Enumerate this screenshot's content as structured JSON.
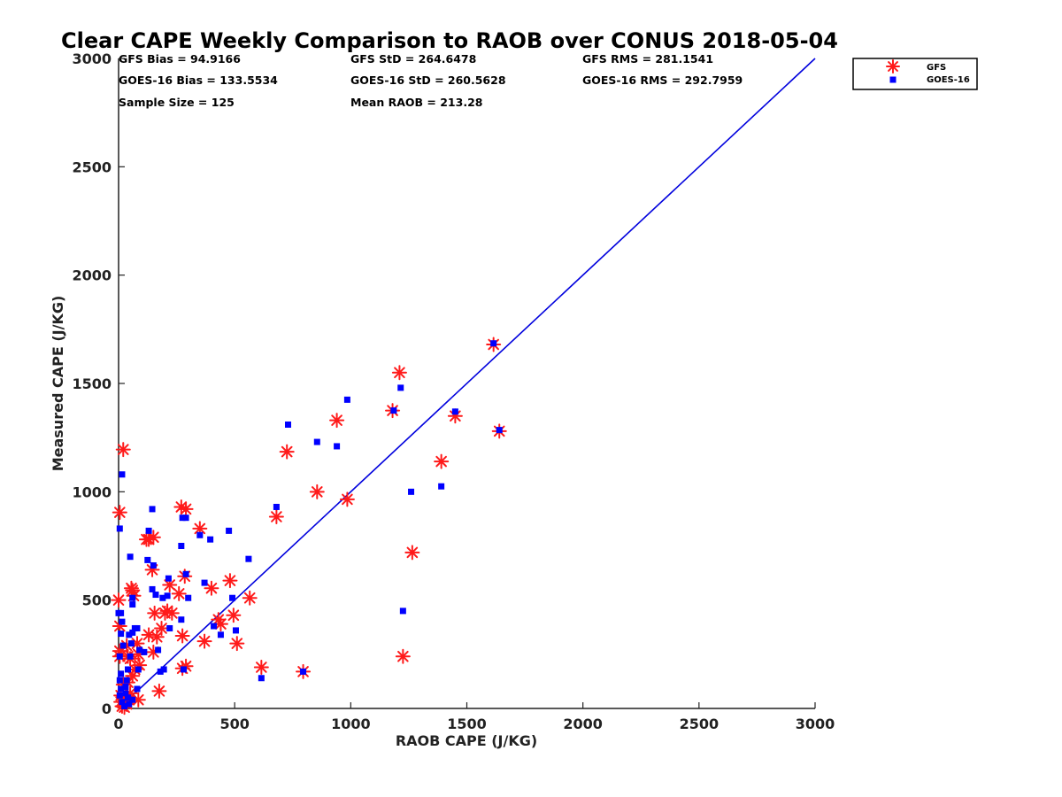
{
  "chart_data": {
    "type": "scatter",
    "title": "Clear CAPE Weekly Comparison to RAOB over CONUS 2018-05-04",
    "xlabel": "RAOB CAPE (J/KG)",
    "ylabel": "Measured CAPE (J/KG)",
    "xlim": [
      0,
      3000
    ],
    "ylim": [
      0,
      3000
    ],
    "xticks": [
      "0",
      "500",
      "1000",
      "1500",
      "2000",
      "2500",
      "3000"
    ],
    "yticks": [
      "0",
      "500",
      "1000",
      "1500",
      "2000",
      "2500",
      "3000"
    ],
    "grid": false,
    "legend_position": "top-right",
    "stats": {
      "row1": [
        "GFS Bias = 94.9166",
        "GFS StD = 264.6478",
        "GFS RMS = 281.1541"
      ],
      "row2": [
        "GOES-16 Bias = 133.5534",
        "GOES-16 StD = 260.5628",
        "GOES-16 RMS = 292.7959"
      ],
      "row3": [
        "Sample Size = 125",
        "Mean RAOB = 213.28"
      ]
    },
    "reference_line": {
      "x": [
        0,
        3000
      ],
      "y": [
        0,
        3000
      ],
      "color": "#0000dd"
    },
    "series": [
      {
        "name": "GFS",
        "marker": "asterisk",
        "color": "#ff1a1a",
        "points": [
          [
            20,
            1195
          ],
          [
            5,
            905
          ],
          [
            0,
            500
          ],
          [
            5,
            380
          ],
          [
            5,
            265
          ],
          [
            5,
            240
          ],
          [
            10,
            60
          ],
          [
            10,
            30
          ],
          [
            15,
            10
          ],
          [
            25,
            5
          ],
          [
            30,
            50
          ],
          [
            20,
            110
          ],
          [
            35,
            290
          ],
          [
            40,
            240
          ],
          [
            50,
            230
          ],
          [
            55,
            555
          ],
          [
            60,
            545
          ],
          [
            65,
            520
          ],
          [
            80,
            300
          ],
          [
            85,
            250
          ],
          [
            90,
            200
          ],
          [
            70,
            180
          ],
          [
            60,
            150
          ],
          [
            40,
            120
          ],
          [
            50,
            70
          ],
          [
            45,
            40
          ],
          [
            85,
            40
          ],
          [
            35,
            20
          ],
          [
            120,
            780
          ],
          [
            130,
            780
          ],
          [
            150,
            790
          ],
          [
            145,
            640
          ],
          [
            155,
            440
          ],
          [
            165,
            330
          ],
          [
            150,
            260
          ],
          [
            130,
            340
          ],
          [
            175,
            80
          ],
          [
            185,
            370
          ],
          [
            200,
            440
          ],
          [
            210,
            450
          ],
          [
            220,
            570
          ],
          [
            230,
            440
          ],
          [
            260,
            530
          ],
          [
            270,
            930
          ],
          [
            290,
            920
          ],
          [
            275,
            335
          ],
          [
            275,
            185
          ],
          [
            290,
            195
          ],
          [
            285,
            610
          ],
          [
            350,
            830
          ],
          [
            370,
            310
          ],
          [
            400,
            555
          ],
          [
            430,
            410
          ],
          [
            440,
            390
          ],
          [
            480,
            590
          ],
          [
            495,
            430
          ],
          [
            510,
            300
          ],
          [
            565,
            510
          ],
          [
            615,
            190
          ],
          [
            680,
            885
          ],
          [
            725,
            1185
          ],
          [
            795,
            170
          ],
          [
            855,
            1000
          ],
          [
            940,
            1330
          ],
          [
            985,
            965
          ],
          [
            1180,
            1375
          ],
          [
            1210,
            1550
          ],
          [
            1225,
            240
          ],
          [
            1265,
            720
          ],
          [
            1390,
            1140
          ],
          [
            1450,
            1350
          ],
          [
            1615,
            1680
          ],
          [
            1640,
            1280
          ]
        ]
      },
      {
        "name": "GOES-16",
        "marker": "square",
        "color": "#0000ff",
        "points": [
          [
            15,
            1080
          ],
          [
            5,
            830
          ],
          [
            0,
            440
          ],
          [
            10,
            440
          ],
          [
            15,
            400
          ],
          [
            10,
            345
          ],
          [
            20,
            290
          ],
          [
            5,
            240
          ],
          [
            10,
            160
          ],
          [
            5,
            130
          ],
          [
            10,
            90
          ],
          [
            5,
            60
          ],
          [
            15,
            30
          ],
          [
            25,
            10
          ],
          [
            30,
            70
          ],
          [
            35,
            130
          ],
          [
            40,
            180
          ],
          [
            50,
            240
          ],
          [
            55,
            300
          ],
          [
            45,
            340
          ],
          [
            60,
            350
          ],
          [
            50,
            700
          ],
          [
            60,
            510
          ],
          [
            60,
            480
          ],
          [
            70,
            370
          ],
          [
            80,
            370
          ],
          [
            90,
            270
          ],
          [
            85,
            180
          ],
          [
            80,
            90
          ],
          [
            60,
            40
          ],
          [
            45,
            20
          ],
          [
            40,
            50
          ],
          [
            30,
            100
          ],
          [
            110,
            260
          ],
          [
            125,
            685
          ],
          [
            130,
            820
          ],
          [
            145,
            920
          ],
          [
            150,
            660
          ],
          [
            145,
            550
          ],
          [
            160,
            525
          ],
          [
            170,
            270
          ],
          [
            180,
            170
          ],
          [
            190,
            510
          ],
          [
            195,
            180
          ],
          [
            210,
            520
          ],
          [
            215,
            600
          ],
          [
            220,
            370
          ],
          [
            270,
            410
          ],
          [
            270,
            750
          ],
          [
            275,
            880
          ],
          [
            280,
            180
          ],
          [
            290,
            620
          ],
          [
            290,
            880
          ],
          [
            300,
            510
          ],
          [
            350,
            800
          ],
          [
            370,
            580
          ],
          [
            395,
            780
          ],
          [
            410,
            380
          ],
          [
            440,
            340
          ],
          [
            475,
            820
          ],
          [
            490,
            510
          ],
          [
            505,
            360
          ],
          [
            560,
            690
          ],
          [
            615,
            140
          ],
          [
            680,
            930
          ],
          [
            730,
            1310
          ],
          [
            795,
            170
          ],
          [
            855,
            1230
          ],
          [
            940,
            1210
          ],
          [
            985,
            1425
          ],
          [
            1185,
            1375
          ],
          [
            1215,
            1480
          ],
          [
            1225,
            450
          ],
          [
            1260,
            1000
          ],
          [
            1390,
            1025
          ],
          [
            1450,
            1370
          ],
          [
            1615,
            1685
          ],
          [
            1640,
            1285
          ]
        ]
      }
    ]
  }
}
